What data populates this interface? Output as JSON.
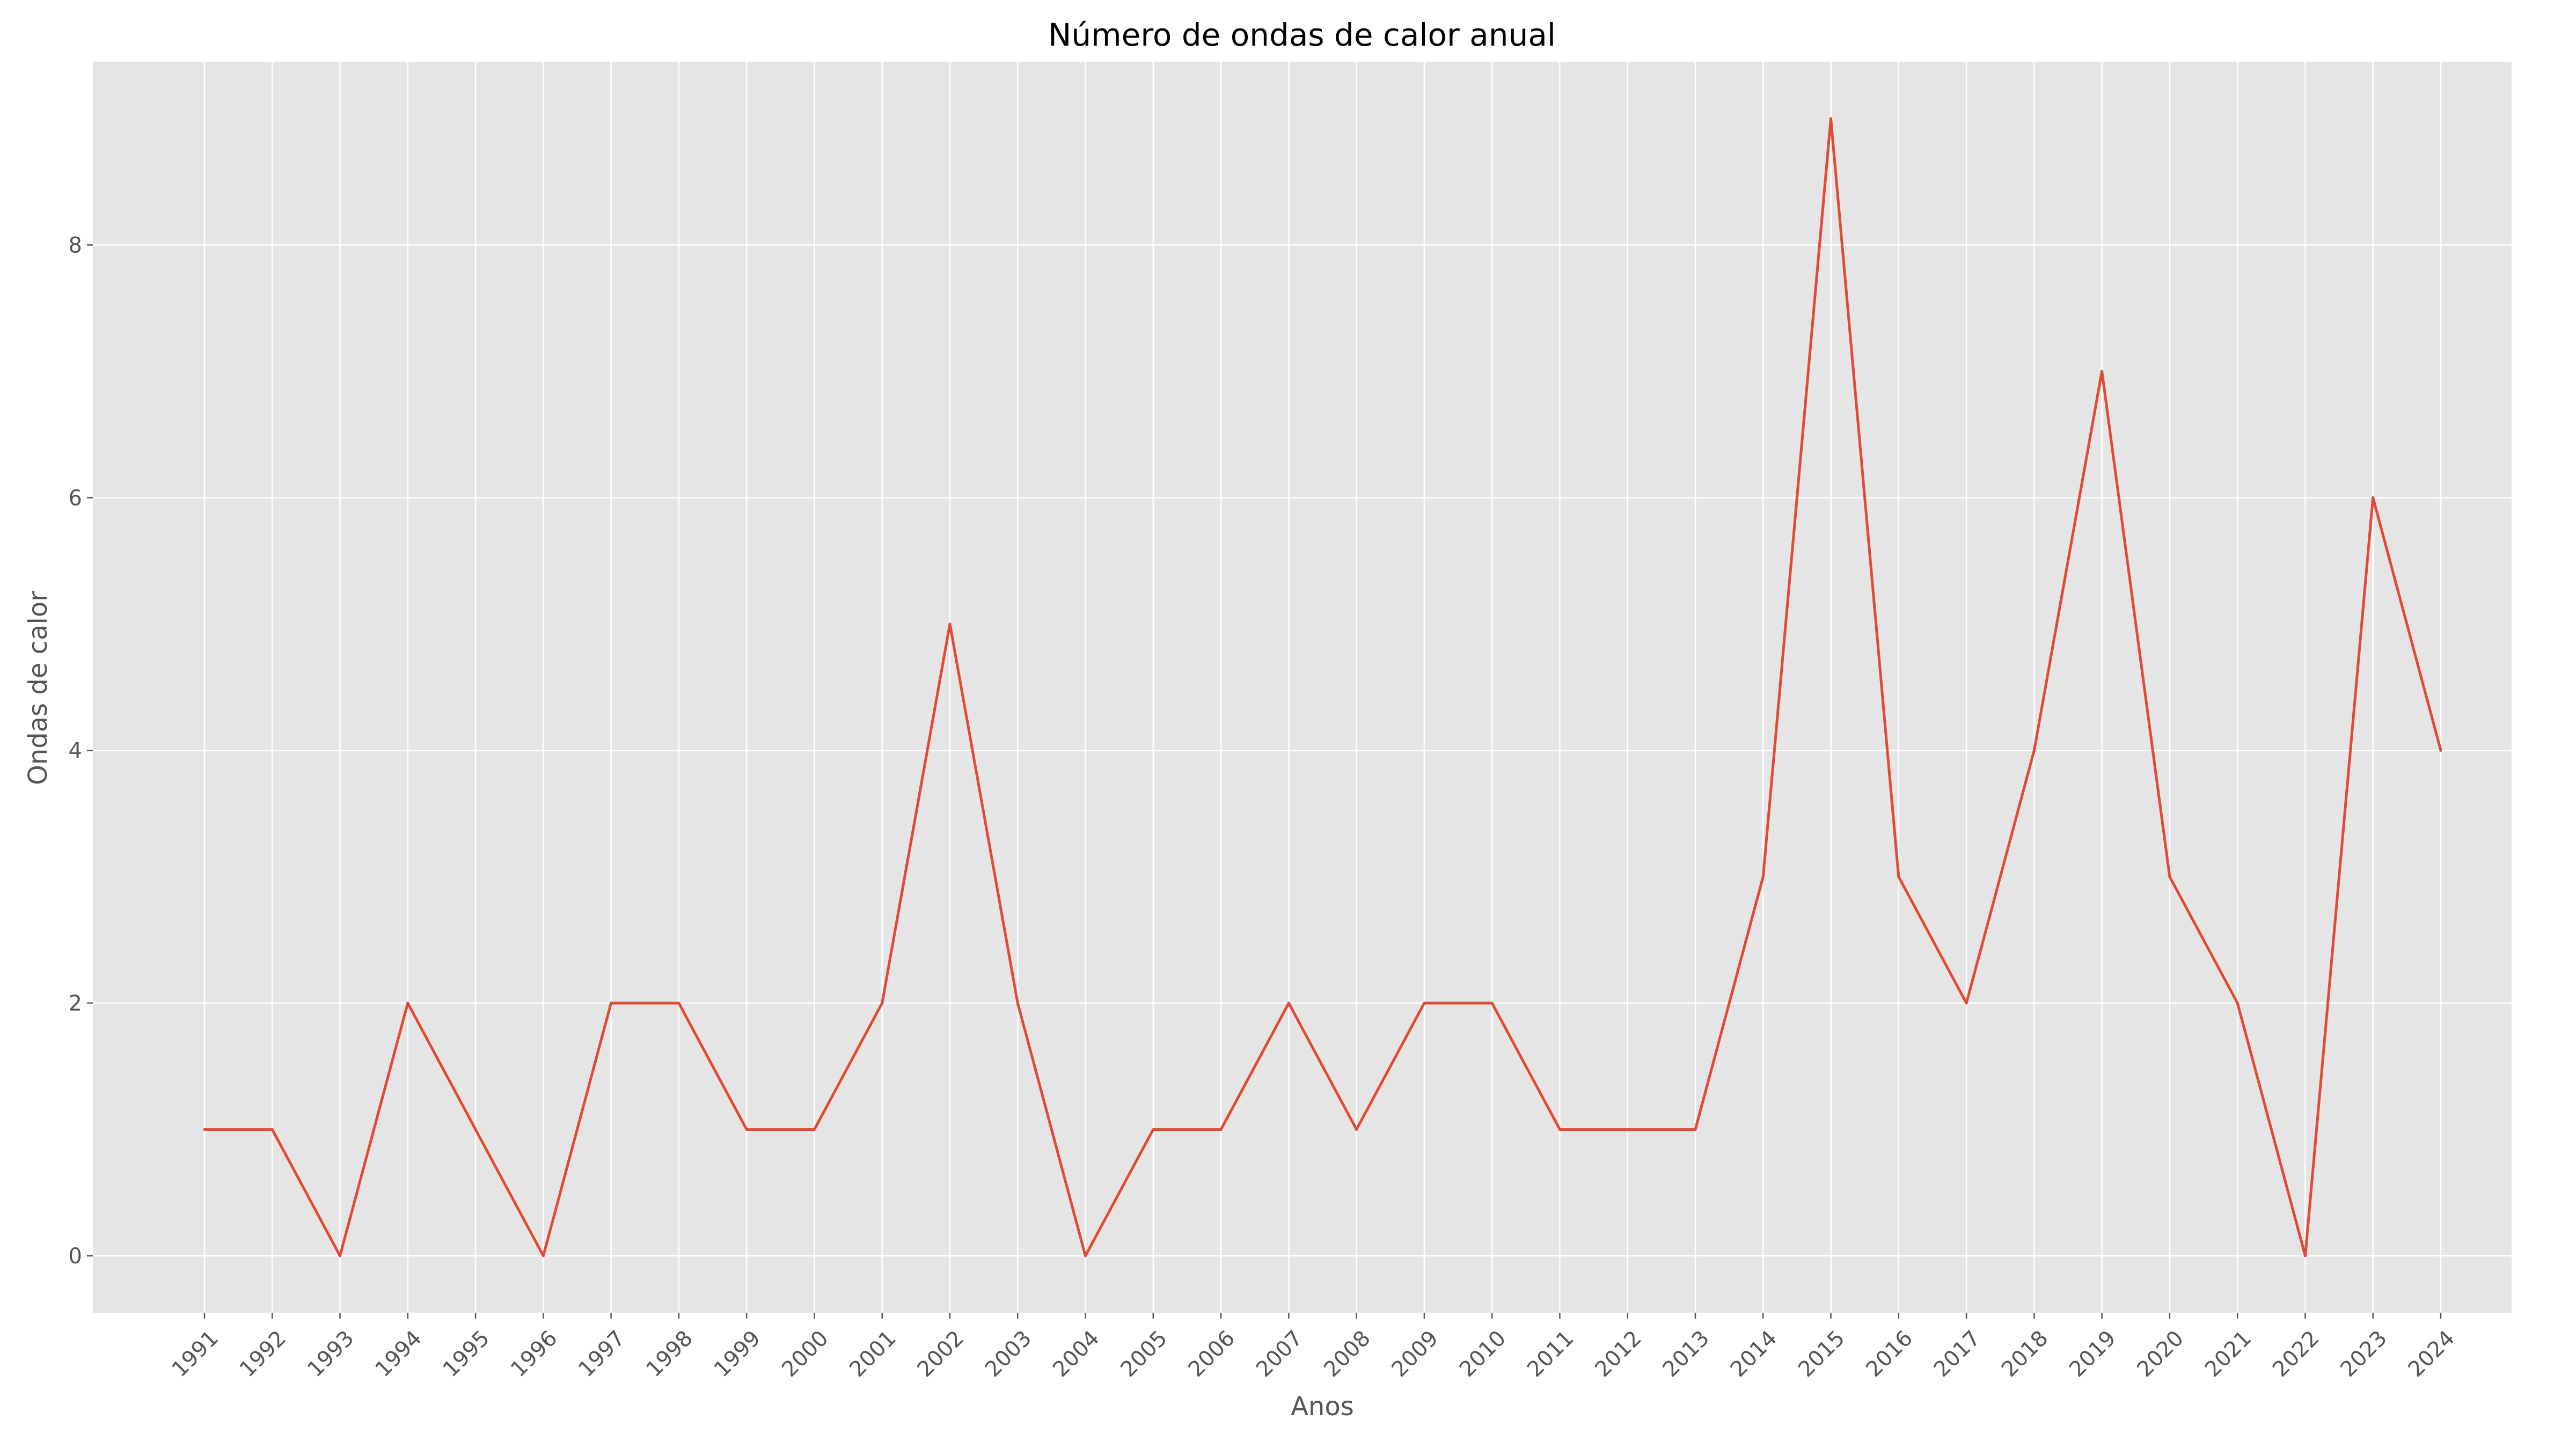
{
  "chart_data": {
    "type": "line",
    "title": "Número de ondas de calor anual",
    "xlabel": "Anos",
    "ylabel": "Ondas de calor",
    "categories": [
      "1991",
      "1992",
      "1993",
      "1994",
      "1995",
      "1996",
      "1997",
      "1998",
      "1999",
      "2000",
      "2001",
      "2002",
      "2003",
      "2004",
      "2005",
      "2006",
      "2007",
      "2008",
      "2009",
      "2010",
      "2011",
      "2012",
      "2013",
      "2014",
      "2015",
      "2016",
      "2017",
      "2018",
      "2019",
      "2020",
      "2021",
      "2022",
      "2023",
      "2024"
    ],
    "series": [
      {
        "values": [
          1,
          1,
          0,
          2,
          1,
          0,
          2,
          2,
          1,
          1,
          2,
          5,
          2,
          0,
          1,
          1,
          2,
          1,
          2,
          2,
          1,
          1,
          1,
          3,
          9,
          3,
          2,
          4,
          7,
          3,
          2,
          0,
          6,
          4
        ],
        "color": "#e24a33"
      }
    ],
    "yticks": [
      "0",
      "2",
      "4",
      "6",
      "8"
    ],
    "ylim": [
      -0.45,
      9.45
    ],
    "grid": true,
    "background": "#e5e5e5",
    "gridcolor": "#ffffff"
  }
}
